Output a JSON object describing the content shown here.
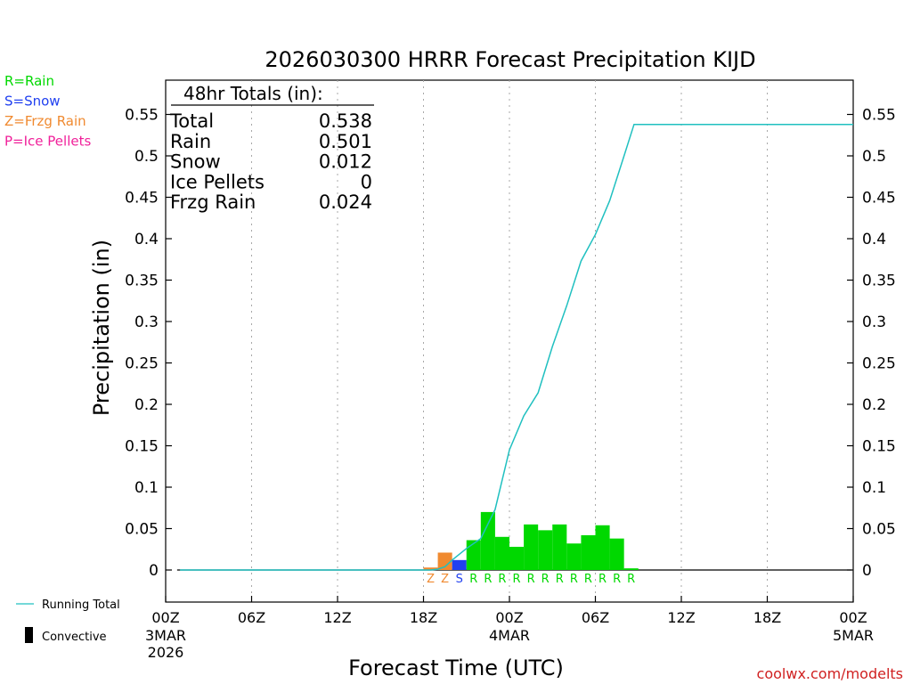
{
  "chart_data": {
    "type": "bar",
    "title": "2026030300 HRRR Forecast Precipitation KIJD",
    "xlabel": "Forecast Time (UTC)",
    "ylabel": "Precipitation (in)",
    "ylim": [
      -0.04,
      0.59
    ],
    "xlim_hours": [
      0,
      48
    ],
    "yticks": [
      "0",
      "0.05",
      "0.1",
      "0.15",
      "0.2",
      "0.25",
      "0.3",
      "0.35",
      "0.4",
      "0.45",
      "0.5",
      "0.55"
    ],
    "ytick_values": [
      0,
      0.05,
      0.1,
      0.15,
      0.2,
      0.25,
      0.3,
      0.35,
      0.4,
      0.45,
      0.5,
      0.55
    ],
    "xticks": [
      {
        "hour": 0,
        "label": "00Z",
        "sub1": "3MAR",
        "sub2": "2026"
      },
      {
        "hour": 6,
        "label": "06Z",
        "sub1": "",
        "sub2": ""
      },
      {
        "hour": 12,
        "label": "12Z",
        "sub1": "",
        "sub2": ""
      },
      {
        "hour": 18,
        "label": "18Z",
        "sub1": "",
        "sub2": ""
      },
      {
        "hour": 24,
        "label": "00Z",
        "sub1": "4MAR",
        "sub2": ""
      },
      {
        "hour": 30,
        "label": "06Z",
        "sub1": "",
        "sub2": ""
      },
      {
        "hour": 36,
        "label": "12Z",
        "sub1": "",
        "sub2": ""
      },
      {
        "hour": 42,
        "label": "18Z",
        "sub1": "",
        "sub2": ""
      },
      {
        "hour": 48,
        "label": "00Z",
        "sub1": "5MAR",
        "sub2": ""
      }
    ],
    "hourly_bars": [
      {
        "hour": 19,
        "value": 0.003,
        "type": "Z"
      },
      {
        "hour": 20,
        "value": 0.021,
        "type": "Z"
      },
      {
        "hour": 21,
        "value": 0.012,
        "type": "S"
      },
      {
        "hour": 22,
        "value": 0.036,
        "type": "R"
      },
      {
        "hour": 23,
        "value": 0.07,
        "type": "R"
      },
      {
        "hour": 24,
        "value": 0.04,
        "type": "R"
      },
      {
        "hour": 25,
        "value": 0.028,
        "type": "R"
      },
      {
        "hour": 26,
        "value": 0.055,
        "type": "R"
      },
      {
        "hour": 27,
        "value": 0.048,
        "type": "R"
      },
      {
        "hour": 28,
        "value": 0.055,
        "type": "R"
      },
      {
        "hour": 29,
        "value": 0.032,
        "type": "R"
      },
      {
        "hour": 30,
        "value": 0.042,
        "type": "R"
      },
      {
        "hour": 31,
        "value": 0.054,
        "type": "R"
      },
      {
        "hour": 32,
        "value": 0.038,
        "type": "R"
      },
      {
        "hour": 33,
        "value": 0.002,
        "type": "R"
      }
    ],
    "running_total": {
      "name": "Running Total",
      "x": [
        1,
        18.5,
        19,
        19.5,
        20,
        21,
        22,
        23,
        24,
        25,
        26,
        27,
        28,
        29,
        30,
        31,
        32,
        32.7,
        48
      ],
      "y": [
        0,
        0,
        0.001,
        0.004,
        0.012,
        0.026,
        0.038,
        0.073,
        0.145,
        0.186,
        0.214,
        0.27,
        0.319,
        0.373,
        0.405,
        0.446,
        0.5,
        0.538,
        0.538
      ]
    },
    "colors": {
      "R": "#00d800",
      "S": "#2040f0",
      "Z": "#f08a30",
      "P": "#f0209a",
      "running_total": "#20c0c0",
      "convective": "#000000"
    },
    "totals_box": {
      "header": "48hr Totals (in):",
      "rows": [
        {
          "label": "Total",
          "value": "0.538"
        },
        {
          "label": "Rain",
          "value": "0.501"
        },
        {
          "label": "Snow",
          "value": "0.012"
        },
        {
          "label": "Ice Pellets",
          "value": "0"
        },
        {
          "label": "Frzg Rain",
          "value": "0.024"
        }
      ]
    },
    "type_legend": [
      {
        "text": "R=Rain",
        "color": "#00d800"
      },
      {
        "text": "S=Snow",
        "color": "#2040f0"
      },
      {
        "text": "Z=Frzg Rain",
        "color": "#f08a30"
      },
      {
        "text": "P=Ice Pellets",
        "color": "#f0209a"
      }
    ],
    "bottom_legend": {
      "running_total": "Running Total",
      "convective": "Convective"
    },
    "credit": "coolwx.com/modelts"
  }
}
